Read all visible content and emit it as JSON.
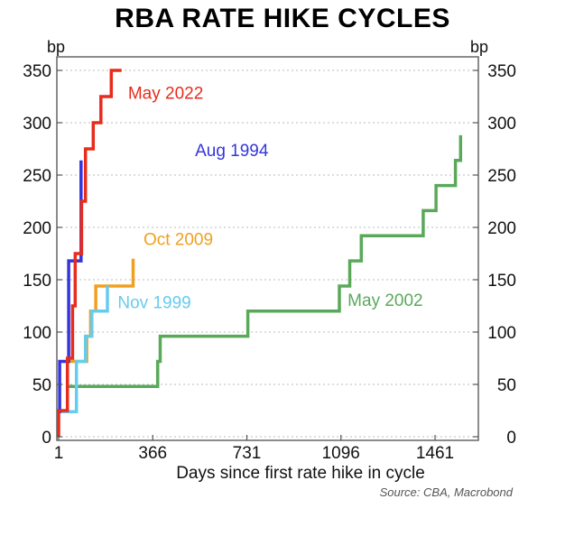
{
  "chart_data": {
    "type": "line",
    "title": "RBA RATE HIKE CYCLES",
    "xlabel": "Days since first rate hike in cycle",
    "ylabel_left": "bp",
    "ylabel_right": "bp",
    "source": "Source: CBA, Macrobond",
    "xlim": [
      1,
      1620
    ],
    "ylim": [
      0,
      350
    ],
    "xticks": [
      1,
      366,
      731,
      1096,
      1461
    ],
    "xtick_labels": [
      "1",
      "366",
      "731",
      "1096",
      "1461"
    ],
    "yticks": [
      0,
      50,
      100,
      150,
      200,
      250,
      300,
      350
    ],
    "ytick_labels": [
      "0",
      "50",
      "100",
      "150",
      "200",
      "250",
      "300",
      "350"
    ],
    "grid": "horizontal-dotted",
    "step": true,
    "series": [
      {
        "name": "May 2002",
        "color": "#5aa95a",
        "label_at": [
          1122,
          125
        ],
        "points": [
          [
            40,
            48
          ],
          [
            385,
            48
          ],
          [
            385,
            72
          ],
          [
            395,
            72
          ],
          [
            395,
            96
          ],
          [
            735,
            96
          ],
          [
            735,
            120
          ],
          [
            1090,
            120
          ],
          [
            1090,
            144
          ],
          [
            1130,
            144
          ],
          [
            1130,
            168
          ],
          [
            1175,
            168
          ],
          [
            1175,
            192
          ],
          [
            1415,
            192
          ],
          [
            1415,
            216
          ],
          [
            1465,
            216
          ],
          [
            1465,
            240
          ],
          [
            1540,
            240
          ],
          [
            1540,
            264
          ],
          [
            1560,
            264
          ],
          [
            1560,
            288
          ]
        ]
      },
      {
        "name": "Oct 2009",
        "color": "#f0a020",
        "label_at": [
          330,
          183
        ],
        "points": [
          [
            35,
            48
          ],
          [
            35,
            72
          ],
          [
            110,
            72
          ],
          [
            110,
            96
          ],
          [
            125,
            96
          ],
          [
            125,
            120
          ],
          [
            145,
            120
          ],
          [
            145,
            144
          ],
          [
            290,
            144
          ],
          [
            290,
            170
          ]
        ]
      },
      {
        "name": "Nov 1999",
        "color": "#66ccee",
        "label_at": [
          230,
          123
        ],
        "points": [
          [
            1,
            24
          ],
          [
            70,
            24
          ],
          [
            70,
            72
          ],
          [
            105,
            72
          ],
          [
            105,
            96
          ],
          [
            130,
            96
          ],
          [
            130,
            120
          ],
          [
            190,
            120
          ],
          [
            190,
            144
          ]
        ]
      },
      {
        "name": "Aug 1994",
        "color": "#3535dd",
        "label_at": [
          530,
          268
        ],
        "points": [
          [
            1,
            24
          ],
          [
            5,
            24
          ],
          [
            5,
            72
          ],
          [
            40,
            72
          ],
          [
            40,
            168
          ],
          [
            88,
            168
          ],
          [
            88,
            264
          ]
        ]
      },
      {
        "name": "May 2022",
        "color": "#e82c1c",
        "label_at": [
          270,
          323
        ],
        "points": [
          [
            1,
            0
          ],
          [
            1,
            25
          ],
          [
            35,
            25
          ],
          [
            35,
            75
          ],
          [
            55,
            75
          ],
          [
            55,
            125
          ],
          [
            65,
            125
          ],
          [
            65,
            175
          ],
          [
            90,
            175
          ],
          [
            90,
            225
          ],
          [
            105,
            225
          ],
          [
            105,
            275
          ],
          [
            135,
            275
          ],
          [
            135,
            300
          ],
          [
            165,
            300
          ],
          [
            165,
            325
          ],
          [
            205,
            325
          ],
          [
            205,
            350
          ],
          [
            245,
            350
          ]
        ]
      }
    ]
  }
}
